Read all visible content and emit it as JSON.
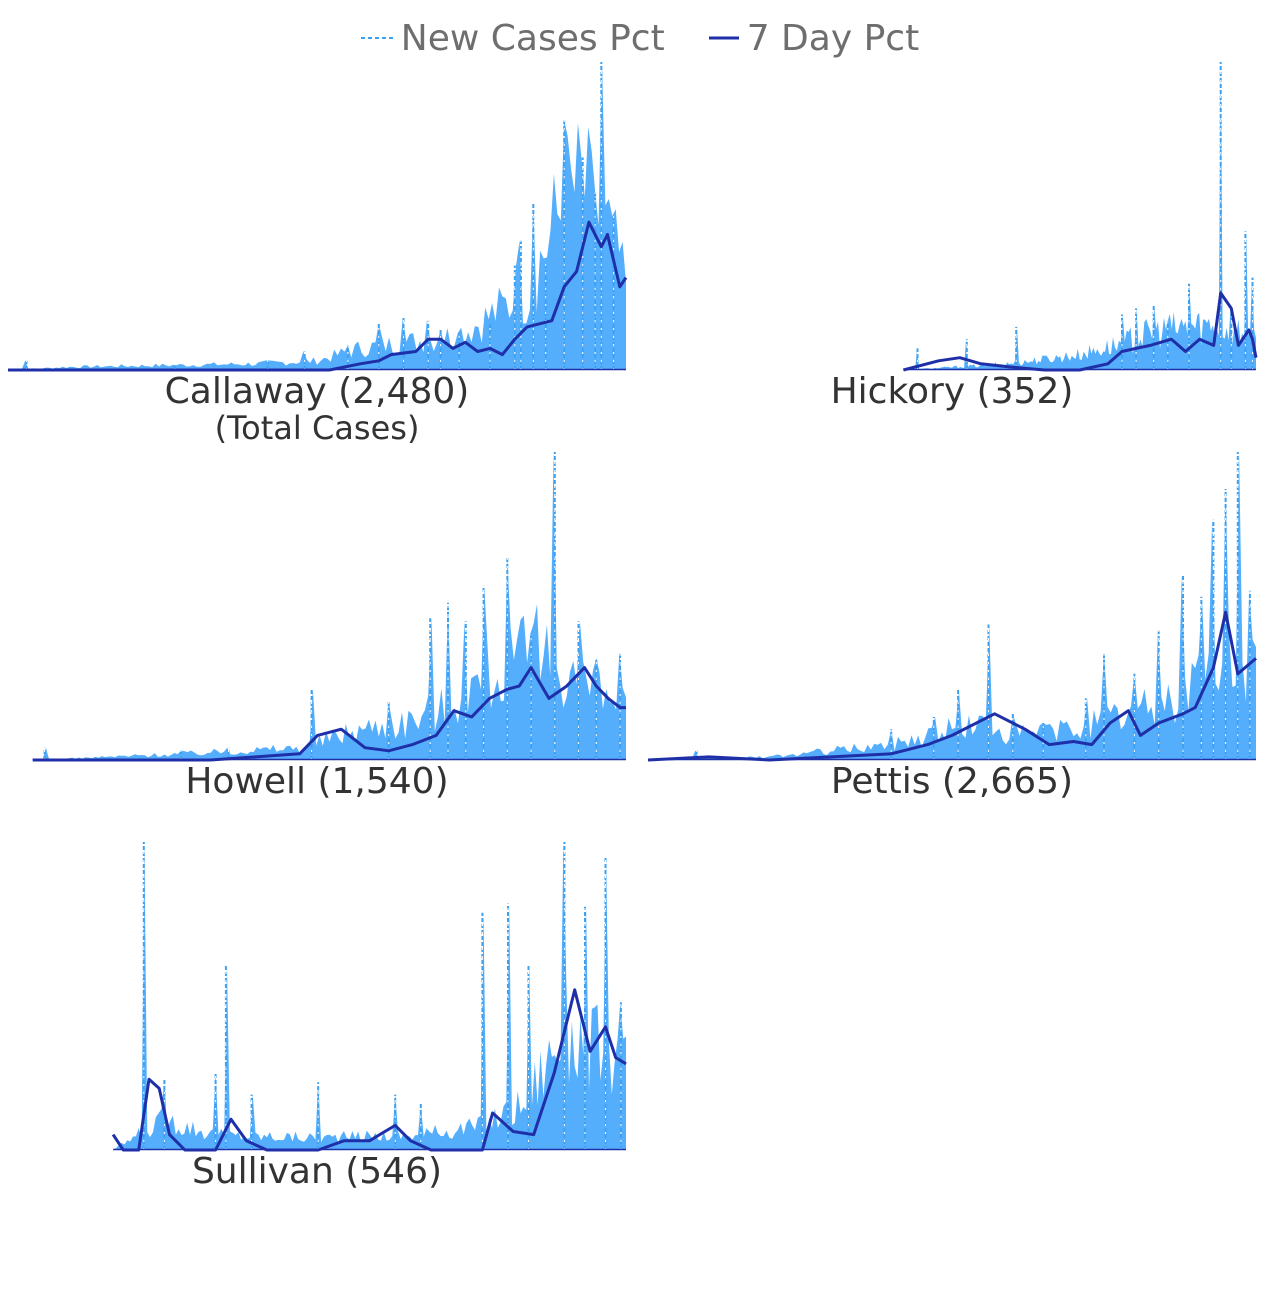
{
  "chart_data": {
    "type": "area",
    "legend": {
      "position": "top-center",
      "items": [
        {
          "label": "New Cases Pct",
          "style": "dashed",
          "color": "#3ea1f0"
        },
        {
          "label": "7 Day Pct",
          "style": "solid",
          "color": "#1f2fa8"
        }
      ]
    },
    "colors": {
      "fill": "#55aefc",
      "dashed": "#3ea1f0",
      "line": "#1f2fa8"
    },
    "axes_visible": false,
    "grid": false,
    "subtitle": "(Total Cases)",
    "panels": [
      {
        "county": "Callaway",
        "total": "2,480",
        "title": "Callaway (2,480)",
        "x_start": 0.0,
        "y_max": 1.0,
        "new_pct_envelope": [
          [
            0.0,
            0.0
          ],
          [
            0.1,
            0.01
          ],
          [
            0.25,
            0.015
          ],
          [
            0.4,
            0.02
          ],
          [
            0.5,
            0.03
          ],
          [
            0.57,
            0.07
          ],
          [
            0.65,
            0.09
          ],
          [
            0.72,
            0.11
          ],
          [
            0.76,
            0.15
          ],
          [
            0.8,
            0.2
          ],
          [
            0.84,
            0.25
          ],
          [
            0.87,
            0.4
          ],
          [
            0.9,
            0.55
          ],
          [
            0.93,
            0.6
          ],
          [
            0.96,
            0.45
          ],
          [
            1.0,
            0.3
          ]
        ],
        "new_pct_spikes": [
          [
            0.03,
            0.03
          ],
          [
            0.27,
            0.015
          ],
          [
            0.42,
            0.03
          ],
          [
            0.48,
            0.06
          ],
          [
            0.55,
            0.08
          ],
          [
            0.6,
            0.15
          ],
          [
            0.64,
            0.17
          ],
          [
            0.68,
            0.16
          ],
          [
            0.7,
            0.13
          ],
          [
            0.73,
            0.12
          ],
          [
            0.78,
            0.15
          ],
          [
            0.82,
            0.34
          ],
          [
            0.83,
            0.42
          ],
          [
            0.85,
            0.54
          ],
          [
            0.87,
            0.35
          ],
          [
            0.9,
            0.81
          ],
          [
            0.93,
            0.69
          ],
          [
            0.95,
            0.58
          ],
          [
            0.96,
            1.0
          ],
          [
            0.98,
            0.5
          ]
        ],
        "pct7": [
          [
            0.0,
            0.0
          ],
          [
            0.52,
            0.0
          ],
          [
            0.57,
            0.02
          ],
          [
            0.6,
            0.03
          ],
          [
            0.62,
            0.05
          ],
          [
            0.66,
            0.06
          ],
          [
            0.68,
            0.1
          ],
          [
            0.7,
            0.1
          ],
          [
            0.72,
            0.07
          ],
          [
            0.74,
            0.09
          ],
          [
            0.76,
            0.06
          ],
          [
            0.78,
            0.07
          ],
          [
            0.8,
            0.05
          ],
          [
            0.82,
            0.1
          ],
          [
            0.84,
            0.14
          ],
          [
            0.86,
            0.15
          ],
          [
            0.88,
            0.16
          ],
          [
            0.9,
            0.27
          ],
          [
            0.92,
            0.32
          ],
          [
            0.94,
            0.48
          ],
          [
            0.96,
            0.4
          ],
          [
            0.97,
            0.44
          ],
          [
            0.99,
            0.27
          ],
          [
            1.0,
            0.3
          ]
        ]
      },
      {
        "county": "Hickory",
        "total": "352",
        "title": "Hickory (352)",
        "x_start": 0.42,
        "y_max": 1.0,
        "new_pct_envelope": [
          [
            0.0,
            0.0
          ],
          [
            0.3,
            0.02
          ],
          [
            0.5,
            0.05
          ],
          [
            0.6,
            0.08
          ],
          [
            0.7,
            0.12
          ],
          [
            0.8,
            0.14
          ],
          [
            0.9,
            0.15
          ],
          [
            1.0,
            0.1
          ]
        ],
        "new_pct_spikes": [
          [
            0.04,
            0.07
          ],
          [
            0.18,
            0.1
          ],
          [
            0.32,
            0.14
          ],
          [
            0.62,
            0.18
          ],
          [
            0.66,
            0.2
          ],
          [
            0.71,
            0.21
          ],
          [
            0.75,
            0.16
          ],
          [
            0.81,
            0.28
          ],
          [
            0.9,
            1.0
          ],
          [
            0.93,
            0.2
          ],
          [
            0.97,
            0.45
          ],
          [
            0.99,
            0.3
          ]
        ],
        "pct7": [
          [
            0.0,
            0.0
          ],
          [
            0.1,
            0.03
          ],
          [
            0.16,
            0.04
          ],
          [
            0.22,
            0.02
          ],
          [
            0.3,
            0.01
          ],
          [
            0.4,
            0.0
          ],
          [
            0.5,
            0.0
          ],
          [
            0.58,
            0.02
          ],
          [
            0.62,
            0.06
          ],
          [
            0.66,
            0.07
          ],
          [
            0.7,
            0.08
          ],
          [
            0.76,
            0.1
          ],
          [
            0.8,
            0.06
          ],
          [
            0.84,
            0.1
          ],
          [
            0.88,
            0.08
          ],
          [
            0.9,
            0.25
          ],
          [
            0.93,
            0.2
          ],
          [
            0.95,
            0.08
          ],
          [
            0.98,
            0.13
          ],
          [
            0.99,
            0.1
          ],
          [
            1.0,
            0.04
          ]
        ]
      },
      {
        "county": "Howell",
        "total": "1,540",
        "title": "Howell (1,540)",
        "x_start": 0.04,
        "y_max": 1.0,
        "new_pct_envelope": [
          [
            0.0,
            0.0
          ],
          [
            0.25,
            0.02
          ],
          [
            0.45,
            0.04
          ],
          [
            0.55,
            0.1
          ],
          [
            0.62,
            0.12
          ],
          [
            0.7,
            0.18
          ],
          [
            0.75,
            0.25
          ],
          [
            0.8,
            0.3
          ],
          [
            0.85,
            0.35
          ],
          [
            0.9,
            0.3
          ],
          [
            0.95,
            0.2
          ],
          [
            1.0,
            0.18
          ]
        ],
        "new_pct_spikes": [
          [
            0.02,
            0.04
          ],
          [
            0.25,
            0.03
          ],
          [
            0.33,
            0.04
          ],
          [
            0.47,
            0.23
          ],
          [
            0.6,
            0.19
          ],
          [
            0.67,
            0.46
          ],
          [
            0.7,
            0.51
          ],
          [
            0.73,
            0.45
          ],
          [
            0.76,
            0.56
          ],
          [
            0.8,
            0.66
          ],
          [
            0.84,
            0.41
          ],
          [
            0.88,
            1.0
          ],
          [
            0.92,
            0.45
          ],
          [
            0.95,
            0.33
          ],
          [
            0.99,
            0.35
          ]
        ],
        "pct7": [
          [
            0.0,
            0.0
          ],
          [
            0.3,
            0.0
          ],
          [
            0.45,
            0.02
          ],
          [
            0.48,
            0.08
          ],
          [
            0.52,
            0.1
          ],
          [
            0.56,
            0.04
          ],
          [
            0.6,
            0.03
          ],
          [
            0.64,
            0.05
          ],
          [
            0.68,
            0.08
          ],
          [
            0.71,
            0.16
          ],
          [
            0.74,
            0.14
          ],
          [
            0.77,
            0.2
          ],
          [
            0.8,
            0.23
          ],
          [
            0.82,
            0.24
          ],
          [
            0.84,
            0.3
          ],
          [
            0.87,
            0.2
          ],
          [
            0.9,
            0.24
          ],
          [
            0.93,
            0.3
          ],
          [
            0.95,
            0.24
          ],
          [
            0.97,
            0.2
          ],
          [
            0.99,
            0.17
          ],
          [
            1.0,
            0.17
          ]
        ]
      },
      {
        "county": "Pettis",
        "total": "2,665",
        "title": "Pettis (2,665)",
        "x_start": 0.0,
        "y_max": 1.0,
        "new_pct_envelope": [
          [
            0.0,
            0.0
          ],
          [
            0.2,
            0.01
          ],
          [
            0.4,
            0.05
          ],
          [
            0.5,
            0.1
          ],
          [
            0.55,
            0.12
          ],
          [
            0.6,
            0.08
          ],
          [
            0.7,
            0.1
          ],
          [
            0.75,
            0.13
          ],
          [
            0.8,
            0.15
          ],
          [
            0.87,
            0.2
          ],
          [
            0.92,
            0.3
          ],
          [
            0.96,
            0.35
          ],
          [
            1.0,
            0.3
          ]
        ],
        "new_pct_spikes": [
          [
            0.08,
            0.03
          ],
          [
            0.26,
            0.02
          ],
          [
            0.4,
            0.1
          ],
          [
            0.47,
            0.14
          ],
          [
            0.51,
            0.23
          ],
          [
            0.56,
            0.44
          ],
          [
            0.6,
            0.15
          ],
          [
            0.65,
            0.12
          ],
          [
            0.72,
            0.2
          ],
          [
            0.75,
            0.35
          ],
          [
            0.8,
            0.28
          ],
          [
            0.84,
            0.42
          ],
          [
            0.88,
            0.6
          ],
          [
            0.91,
            0.53
          ],
          [
            0.93,
            0.78
          ],
          [
            0.95,
            0.88
          ],
          [
            0.97,
            1.0
          ],
          [
            0.99,
            0.55
          ]
        ],
        "pct7": [
          [
            0.0,
            0.0
          ],
          [
            0.1,
            0.01
          ],
          [
            0.2,
            0.0
          ],
          [
            0.4,
            0.02
          ],
          [
            0.46,
            0.05
          ],
          [
            0.5,
            0.08
          ],
          [
            0.57,
            0.15
          ],
          [
            0.62,
            0.1
          ],
          [
            0.66,
            0.05
          ],
          [
            0.7,
            0.06
          ],
          [
            0.73,
            0.05
          ],
          [
            0.76,
            0.12
          ],
          [
            0.79,
            0.16
          ],
          [
            0.81,
            0.08
          ],
          [
            0.84,
            0.12
          ],
          [
            0.88,
            0.15
          ],
          [
            0.9,
            0.17
          ],
          [
            0.93,
            0.3
          ],
          [
            0.95,
            0.48
          ],
          [
            0.97,
            0.28
          ],
          [
            1.0,
            0.33
          ]
        ]
      },
      {
        "county": "Sullivan",
        "total": "546",
        "title": "Sullivan (546)",
        "x_start": 0.17,
        "y_max": 1.0,
        "new_pct_envelope": [
          [
            0.0,
            0.0
          ],
          [
            0.1,
            0.1
          ],
          [
            0.2,
            0.05
          ],
          [
            0.4,
            0.04
          ],
          [
            0.6,
            0.05
          ],
          [
            0.72,
            0.08
          ],
          [
            0.8,
            0.15
          ],
          [
            0.88,
            0.4
          ],
          [
            0.93,
            0.35
          ],
          [
            1.0,
            0.28
          ]
        ],
        "new_pct_spikes": [
          [
            0.06,
            1.0
          ],
          [
            0.1,
            0.23
          ],
          [
            0.2,
            0.25
          ],
          [
            0.22,
            0.6
          ],
          [
            0.27,
            0.18
          ],
          [
            0.4,
            0.22
          ],
          [
            0.55,
            0.18
          ],
          [
            0.6,
            0.15
          ],
          [
            0.72,
            0.77
          ],
          [
            0.77,
            0.8
          ],
          [
            0.81,
            0.6
          ],
          [
            0.88,
            1.0
          ],
          [
            0.92,
            0.79
          ],
          [
            0.96,
            0.95
          ],
          [
            0.99,
            0.48
          ]
        ],
        "pct7": [
          [
            0.0,
            0.05
          ],
          [
            0.02,
            0.0
          ],
          [
            0.05,
            0.0
          ],
          [
            0.07,
            0.23
          ],
          [
            0.09,
            0.2
          ],
          [
            0.11,
            0.05
          ],
          [
            0.14,
            0.0
          ],
          [
            0.2,
            0.0
          ],
          [
            0.23,
            0.1
          ],
          [
            0.26,
            0.03
          ],
          [
            0.3,
            0.0
          ],
          [
            0.4,
            0.0
          ],
          [
            0.45,
            0.03
          ],
          [
            0.5,
            0.03
          ],
          [
            0.55,
            0.08
          ],
          [
            0.58,
            0.03
          ],
          [
            0.62,
            0.0
          ],
          [
            0.72,
            0.0
          ],
          [
            0.74,
            0.12
          ],
          [
            0.78,
            0.06
          ],
          [
            0.82,
            0.05
          ],
          [
            0.86,
            0.25
          ],
          [
            0.9,
            0.52
          ],
          [
            0.93,
            0.32
          ],
          [
            0.96,
            0.4
          ],
          [
            0.98,
            0.3
          ],
          [
            1.0,
            0.28
          ]
        ]
      }
    ]
  }
}
